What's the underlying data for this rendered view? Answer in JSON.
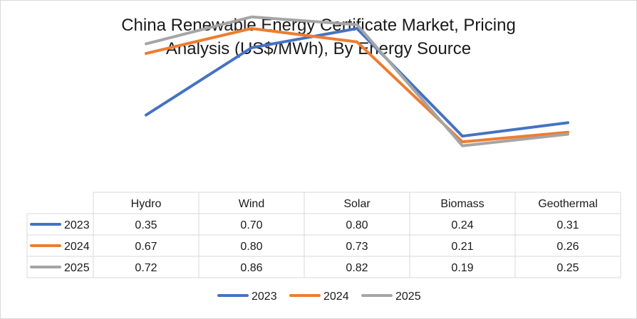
{
  "chart_data": {
    "type": "line",
    "title_lines": [
      "China Renewable Energy Certificate Market, Pricing",
      "Analysis (US$/MWh), By Energy Source"
    ],
    "categories": [
      "Hydro",
      "Wind",
      "Solar",
      "Biomass",
      "Geothermal"
    ],
    "series": [
      {
        "name": "2023",
        "color": "#4472C4",
        "values": [
          0.35,
          0.7,
          0.8,
          0.24,
          0.31
        ],
        "labels": [
          "0.35",
          "0.70",
          "0.80",
          "0.24",
          "0.31"
        ]
      },
      {
        "name": "2024",
        "color": "#ED7D31",
        "values": [
          0.67,
          0.8,
          0.73,
          0.21,
          0.26
        ],
        "labels": [
          "0.67",
          "0.80",
          "0.73",
          "0.21",
          "0.26"
        ]
      },
      {
        "name": "2025",
        "color": "#A5A5A5",
        "values": [
          0.72,
          0.86,
          0.82,
          0.19,
          0.25
        ],
        "labels": [
          "0.72",
          "0.86",
          "0.82",
          "0.19",
          "0.25"
        ]
      }
    ],
    "data_table": true,
    "legend": "bottom-center",
    "grid": false
  }
}
